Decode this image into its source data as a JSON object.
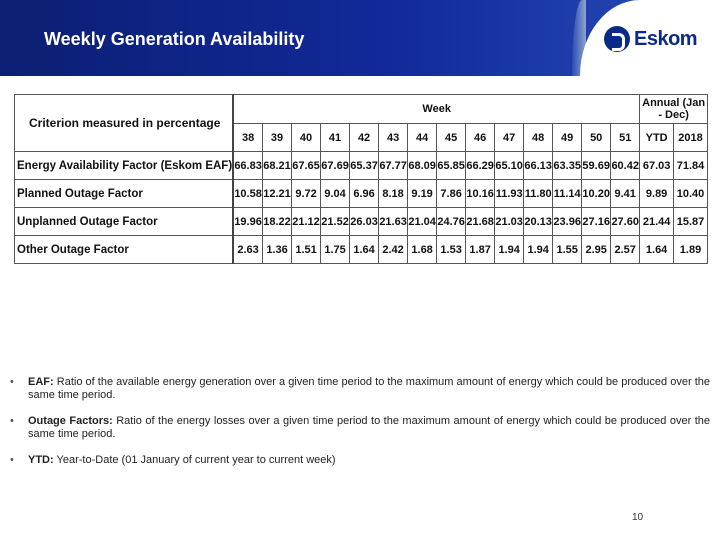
{
  "header": {
    "title": "Weekly Generation Availability",
    "logo_text": "Eskom"
  },
  "table": {
    "criterion_header": "Criterion measured in percentage",
    "week_header": "Week",
    "annual_header": "Annual (Jan - Dec)",
    "week_columns": [
      "38",
      "39",
      "40",
      "41",
      "42",
      "43",
      "44",
      "45",
      "46",
      "47",
      "48",
      "49",
      "50",
      "51"
    ],
    "annual_columns": [
      "YTD",
      "2018"
    ],
    "rows": [
      {
        "label": "Energy Availability Factor (Eskom EAF)",
        "weeks": [
          "66.83",
          "68.21",
          "67.65",
          "67.69",
          "65.37",
          "67.77",
          "68.09",
          "65.85",
          "66.29",
          "65.10",
          "66.13",
          "63.35",
          "59.69",
          "60.42"
        ],
        "annual": [
          "67.03",
          "71.84"
        ]
      },
      {
        "label": "Planned Outage Factor",
        "weeks": [
          "10.58",
          "12.21",
          "9.72",
          "9.04",
          "6.96",
          "8.18",
          "9.19",
          "7.86",
          "10.16",
          "11.93",
          "11.80",
          "11.14",
          "10.20",
          "9.41"
        ],
        "annual": [
          "9.89",
          "10.40"
        ]
      },
      {
        "label": "Unplanned Outage Factor",
        "weeks": [
          "19.96",
          "18.22",
          "21.12",
          "21.52",
          "26.03",
          "21.63",
          "21.04",
          "24.76",
          "21.68",
          "21.03",
          "20.13",
          "23.96",
          "27.16",
          "27.60"
        ],
        "annual": [
          "21.44",
          "15.87"
        ]
      },
      {
        "label": "Other Outage Factor",
        "weeks": [
          "2.63",
          "1.36",
          "1.51",
          "1.75",
          "1.64",
          "2.42",
          "1.68",
          "1.53",
          "1.87",
          "1.94",
          "1.94",
          "1.55",
          "2.95",
          "2.57"
        ],
        "annual": [
          "1.64",
          "1.89"
        ]
      }
    ]
  },
  "notes": [
    {
      "bullet": "•",
      "term": "EAF:",
      "text": " Ratio of the available energy generation over a given time period to the maximum amount of energy which could be produced over the same time period."
    },
    {
      "bullet": "•",
      "term": "Outage Factors:",
      "text": " Ratio of the energy losses over a given time period to the maximum amount of energy which could be produced over the same time period."
    },
    {
      "bullet": "•",
      "term": "YTD:",
      "text": " Year-to-Date (01 January of current year to current week)"
    }
  ],
  "page_number": "10"
}
